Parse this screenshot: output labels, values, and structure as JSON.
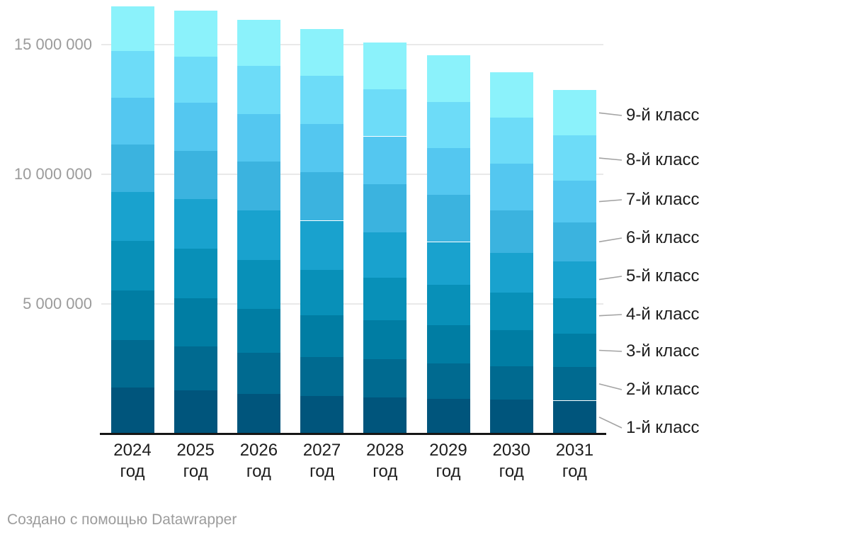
{
  "footer": {
    "credit": "Создано с помощью Datawrapper"
  },
  "y_axis": {
    "tick_labels": [
      "15 000 000",
      "10 000 000",
      "5 000 000"
    ],
    "tick_values": [
      15000000,
      10000000,
      5000000
    ]
  },
  "chart_data": {
    "type": "bar",
    "stacked": true,
    "grid": true,
    "legend_position": "right",
    "ylim": [
      0,
      16700000
    ],
    "gridline_values": [
      5000000,
      10000000,
      15000000
    ],
    "categories": [
      "2024",
      "2025",
      "2026",
      "2027",
      "2028",
      "2029",
      "2030",
      "2031"
    ],
    "category_suffix": "год",
    "series": [
      {
        "label": "1-й класс",
        "color": "#00557C",
        "values": [
          1770000,
          1660000,
          1540000,
          1440000,
          1400000,
          1350000,
          1320000,
          1270000
        ]
      },
      {
        "label": "2-й класс",
        "color": "#006A90",
        "values": [
          1840000,
          1700000,
          1570000,
          1500000,
          1460000,
          1360000,
          1280000,
          1290000
        ]
      },
      {
        "label": "3-й класс",
        "color": "#007DA3",
        "values": [
          1910000,
          1860000,
          1700000,
          1620000,
          1500000,
          1470000,
          1400000,
          1300000
        ]
      },
      {
        "label": "4-й класс",
        "color": "#0890B8",
        "values": [
          1920000,
          1920000,
          1880000,
          1760000,
          1640000,
          1550000,
          1450000,
          1370000
        ]
      },
      {
        "label": "5-й класс",
        "color": "#19A2CE",
        "values": [
          1880000,
          1900000,
          1920000,
          1890000,
          1760000,
          1660000,
          1530000,
          1420000
        ]
      },
      {
        "label": "6-й класс",
        "color": "#3BB3DF",
        "values": [
          1840000,
          1860000,
          1880000,
          1880000,
          1860000,
          1810000,
          1640000,
          1490000
        ]
      },
      {
        "label": "7-й класс",
        "color": "#54C7F0",
        "values": [
          1800000,
          1850000,
          1840000,
          1840000,
          1840000,
          1820000,
          1790000,
          1610000
        ]
      },
      {
        "label": "8-й класс",
        "color": "#6DDCF8",
        "values": [
          1800000,
          1780000,
          1840000,
          1860000,
          1810000,
          1780000,
          1780000,
          1750000
        ]
      },
      {
        "label": "9-й класс",
        "color": "#8BF2FB",
        "values": [
          1720000,
          1790000,
          1790000,
          1810000,
          1810000,
          1790000,
          1740000,
          1740000
        ]
      }
    ]
  }
}
